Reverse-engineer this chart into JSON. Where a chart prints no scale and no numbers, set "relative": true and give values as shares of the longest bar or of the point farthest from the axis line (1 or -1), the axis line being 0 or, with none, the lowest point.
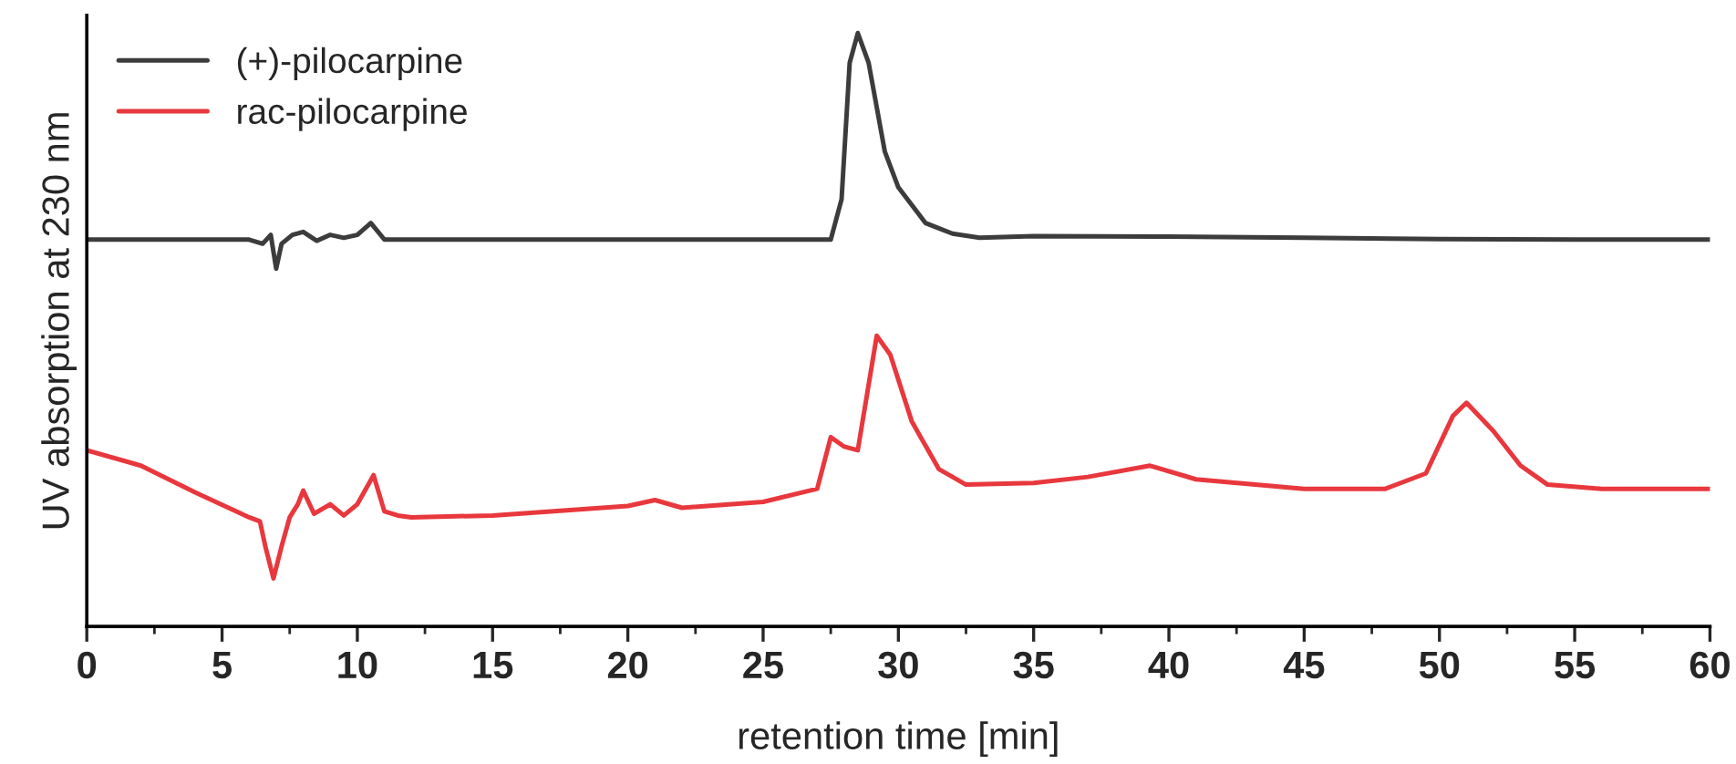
{
  "chart_data": {
    "type": "line",
    "relative": true,
    "xlabel": "retention time [min]",
    "ylabel": "UV absorption at 230 nm",
    "xlim": [
      0,
      60
    ],
    "xticks": [
      0,
      5,
      10,
      15,
      20,
      25,
      30,
      35,
      40,
      45,
      50,
      55,
      60
    ],
    "grid": false,
    "legend": "top left",
    "marker": "none",
    "line_style": "solid",
    "series": [
      {
        "name": "(+)-pilocarpine",
        "color": "#3c3c3c",
        "x": [
          0,
          6,
          6.5,
          6.8,
          7,
          7.2,
          7.6,
          8,
          8.5,
          9,
          9.5,
          10,
          10.5,
          11,
          27.5,
          27.9,
          28.2,
          28.5,
          28.9,
          29.5,
          30,
          31,
          32,
          33,
          35,
          40,
          45,
          50,
          55,
          60
        ],
        "values": [
          0.652,
          0.652,
          0.645,
          0.66,
          0.603,
          0.645,
          0.66,
          0.665,
          0.65,
          0.66,
          0.655,
          0.66,
          0.68,
          0.652,
          0.652,
          0.72,
          0.95,
          1.0,
          0.95,
          0.8,
          0.74,
          0.68,
          0.662,
          0.655,
          0.658,
          0.657,
          0.655,
          0.653,
          0.652,
          0.652
        ]
      },
      {
        "name": "rac-pilocarpine",
        "color": "#e8383d",
        "x": [
          0,
          2,
          4,
          6,
          6.4,
          6.6,
          6.9,
          7.2,
          7.5,
          7.8,
          8,
          8.4,
          9,
          9.5,
          10,
          10.6,
          11,
          11.5,
          12,
          15,
          20,
          21,
          22,
          25,
          27,
          27.5,
          28,
          28.5,
          29.2,
          29.7,
          30.5,
          31.5,
          32.5,
          35,
          37,
          39.3,
          41,
          45,
          48,
          49.5,
          50.5,
          51,
          52,
          53,
          54,
          56,
          60
        ],
        "values": [
          0.297,
          0.271,
          0.226,
          0.184,
          0.177,
          0.135,
          0.081,
          0.135,
          0.184,
          0.206,
          0.229,
          0.19,
          0.206,
          0.187,
          0.206,
          0.255,
          0.194,
          0.187,
          0.184,
          0.187,
          0.203,
          0.213,
          0.2,
          0.21,
          0.232,
          0.319,
          0.303,
          0.297,
          0.49,
          0.458,
          0.345,
          0.265,
          0.239,
          0.242,
          0.252,
          0.271,
          0.248,
          0.232,
          0.232,
          0.258,
          0.355,
          0.377,
          0.329,
          0.271,
          0.239,
          0.232,
          0.232
        ]
      }
    ]
  }
}
